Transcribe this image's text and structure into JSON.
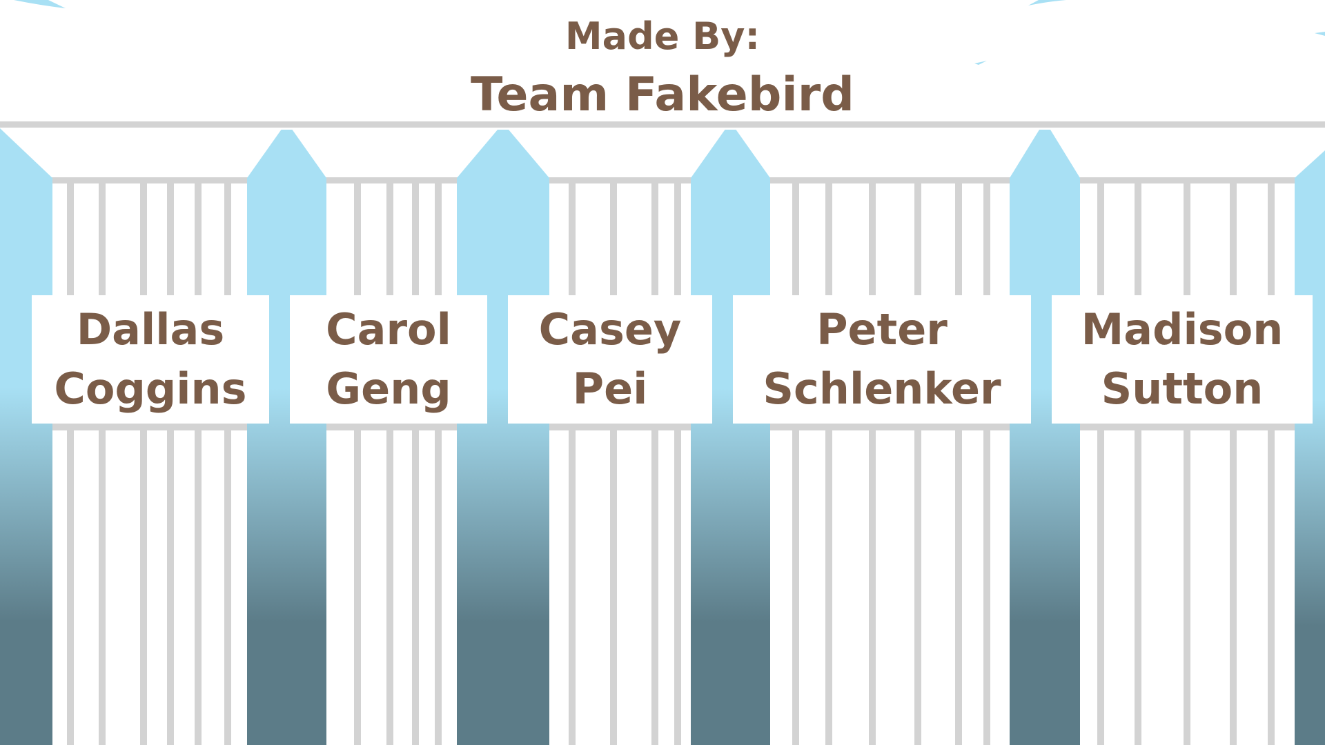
{
  "colors": {
    "text": "#7a5c48",
    "fence": "#d3d3d3",
    "post_top": "#a8e0f4",
    "post_bottom": "#5c7c88",
    "background": "#ffffff"
  },
  "header": {
    "made_by": "Made By:",
    "team_name": "Team Fakebird"
  },
  "members": [
    {
      "first": "Dallas",
      "last": "Coggins"
    },
    {
      "first": "Carol",
      "last": "Geng"
    },
    {
      "first": "Casey",
      "last": "Pei"
    },
    {
      "first": "Peter",
      "last": "Schlenker"
    },
    {
      "first": "Madison",
      "last": "Sutton"
    }
  ]
}
